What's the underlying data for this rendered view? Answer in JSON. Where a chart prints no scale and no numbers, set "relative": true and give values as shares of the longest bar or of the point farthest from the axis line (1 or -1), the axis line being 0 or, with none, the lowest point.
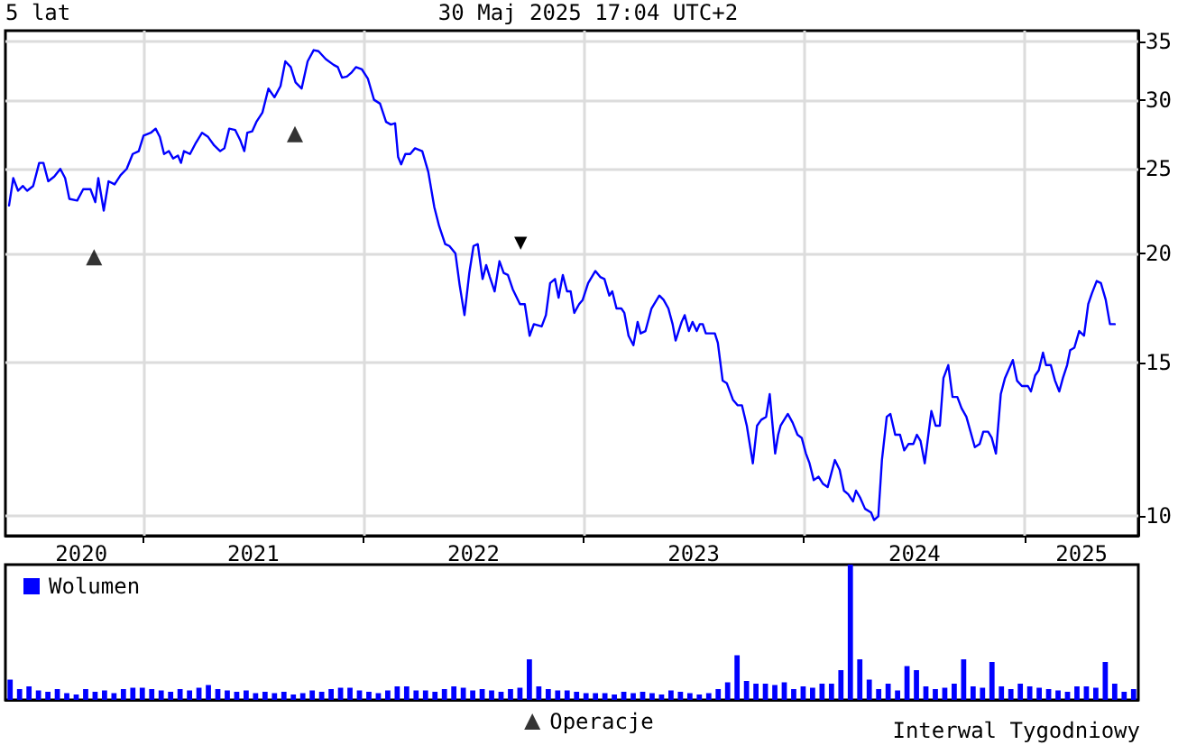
{
  "chart_data": [
    {
      "type": "line",
      "title": "5 lat",
      "subtitle": "30 Maj 2025 17:04 UTC+2",
      "xlim": [
        "2020-05-17",
        "2025-07-08"
      ],
      "xticks": [
        {
          "value": "2020-09-20",
          "label": "2020"
        },
        {
          "value": "2021-01-01",
          "label": null
        },
        {
          "value": "2021-07-02",
          "label": "2021"
        },
        {
          "value": "2022-01-01",
          "label": null
        },
        {
          "value": "2022-07-02",
          "label": "2022"
        },
        {
          "value": "2023-01-01",
          "label": null
        },
        {
          "value": "2023-07-02",
          "label": "2023"
        },
        {
          "value": "2024-01-01",
          "label": null
        },
        {
          "value": "2024-07-02",
          "label": "2024"
        },
        {
          "value": "2025-01-01",
          "label": null
        },
        {
          "value": "2025-04-05",
          "label": "2025"
        }
      ],
      "ylim": [
        9.5,
        36
      ],
      "yticks": [
        10,
        15,
        20,
        25,
        30,
        35
      ],
      "log": "y",
      "grid": true,
      "legend": "bottom",
      "annotations": [
        "▼",
        "Interwal Tygodniowy"
      ],
      "series": [
        {
          "color": "#0000ff",
          "marker": "none",
          "x": [
            "2020-05-23",
            "2020-05-30",
            "2020-06-07",
            "2020-06-15",
            "2020-06-22",
            "2020-07-02",
            "2020-07-12",
            "2020-07-19",
            "2020-07-27",
            "2020-08-06",
            "2020-08-16",
            "2020-08-24",
            "2020-08-31",
            "2020-09-13",
            "2020-09-23",
            "2020-10-05",
            "2020-10-13",
            "2020-10-18",
            "2020-10-27",
            "2020-11-04",
            "2020-11-14",
            "2020-11-24",
            "2020-12-04",
            "2020-12-14",
            "2020-12-24",
            "2021-01-01",
            "2021-01-13",
            "2021-01-21",
            "2021-01-28",
            "2021-02-04",
            "2021-02-12",
            "2021-02-19",
            "2021-02-27",
            "2021-03-04",
            "2021-03-09",
            "2021-03-19",
            "2021-03-29",
            "2021-04-08",
            "2021-04-18",
            "2021-04-28",
            "2021-05-08",
            "2021-05-15",
            "2021-05-23",
            "2021-06-02",
            "2021-06-10",
            "2021-06-17",
            "2021-06-22",
            "2021-06-30",
            "2021-07-07",
            "2021-07-17",
            "2021-07-27",
            "2021-08-06",
            "2021-08-16",
            "2021-08-24",
            "2021-09-02",
            "2021-09-10",
            "2021-09-20",
            "2021-09-30",
            "2021-10-10",
            "2021-10-18",
            "2021-10-30",
            "2021-11-12",
            "2021-11-19",
            "2021-11-26",
            "2021-12-04",
            "2021-12-11",
            "2021-12-19",
            "2021-12-29",
            "2022-01-08",
            "2022-01-18",
            "2022-01-28",
            "2022-02-07",
            "2022-02-15",
            "2022-02-22",
            "2022-02-27",
            "2022-03-04",
            "2022-03-11",
            "2022-03-19",
            "2022-03-27",
            "2022-04-08",
            "2022-04-18",
            "2022-04-28",
            "2022-05-06",
            "2022-05-16",
            "2022-05-23",
            "2022-06-02",
            "2022-06-09",
            "2022-06-17",
            "2022-06-25",
            "2022-07-02",
            "2022-07-09",
            "2022-07-17",
            "2022-07-23",
            "2022-07-29",
            "2022-08-06",
            "2022-08-14",
            "2022-08-21",
            "2022-08-28",
            "2022-09-05",
            "2022-09-17",
            "2022-09-25",
            "2022-10-03",
            "2022-10-10",
            "2022-10-23",
            "2022-10-30",
            "2022-11-06",
            "2022-11-14",
            "2022-11-20",
            "2022-11-27",
            "2022-12-04",
            "2022-12-10",
            "2022-12-16",
            "2022-12-24",
            "2022-12-30",
            "2023-01-08",
            "2023-01-20",
            "2023-01-28",
            "2023-02-04",
            "2023-02-12",
            "2023-02-17",
            "2023-02-24",
            "2023-03-04",
            "2023-03-09",
            "2023-03-16",
            "2023-03-24",
            "2023-03-31",
            "2023-04-05",
            "2023-04-13",
            "2023-04-23",
            "2023-05-06",
            "2023-05-13",
            "2023-05-21",
            "2023-05-28",
            "2023-06-02",
            "2023-06-12",
            "2023-06-17",
            "2023-06-24",
            "2023-06-30",
            "2023-07-07",
            "2023-07-12",
            "2023-07-17",
            "2023-07-22",
            "2023-08-06",
            "2023-08-11",
            "2023-08-19",
            "2023-08-26",
            "2023-09-05",
            "2023-09-13",
            "2023-09-20",
            "2023-09-28",
            "2023-10-08",
            "2023-10-15",
            "2023-10-22",
            "2023-10-30",
            "2023-11-05",
            "2023-11-14",
            "2023-11-19",
            "2023-11-23",
            "2023-12-05",
            "2023-12-13",
            "2023-12-21",
            "2023-12-28",
            "2024-01-04",
            "2024-01-10",
            "2024-01-17",
            "2024-01-25",
            "2024-02-01",
            "2024-02-09",
            "2024-02-21",
            "2024-02-29",
            "2024-03-07",
            "2024-03-14",
            "2024-03-22",
            "2024-03-27",
            "2024-04-03",
            "2024-04-11",
            "2024-04-21",
            "2024-04-26",
            "2024-05-03",
            "2024-05-09",
            "2024-05-17",
            "2024-05-23",
            "2024-05-31",
            "2024-06-08",
            "2024-06-15",
            "2024-06-22",
            "2024-06-30",
            "2024-07-06",
            "2024-07-12",
            "2024-07-19",
            "2024-07-30",
            "2024-08-06",
            "2024-08-13",
            "2024-08-19",
            "2024-08-27",
            "2024-09-03",
            "2024-09-11",
            "2024-09-18",
            "2024-09-26",
            "2024-10-10",
            "2024-10-18",
            "2024-10-24",
            "2024-11-01",
            "2024-11-07",
            "2024-11-14",
            "2024-11-22",
            "2024-11-29",
            "2024-12-12",
            "2024-12-19",
            "2024-12-27",
            "2025-01-06",
            "2025-01-11",
            "2025-01-18",
            "2025-01-24",
            "2025-01-31",
            "2025-02-05",
            "2025-02-13",
            "2025-02-20",
            "2025-02-27",
            "2025-03-05",
            "2025-03-12",
            "2025-03-17",
            "2025-03-24",
            "2025-04-01",
            "2025-04-09",
            "2025-04-16",
            "2025-04-22",
            "2025-04-30",
            "2025-05-07",
            "2025-05-15",
            "2025-05-22",
            "2025-05-30"
          ],
          "values": [
            22.7,
            24.4,
            23.6,
            23.9,
            23.6,
            23.9,
            25.4,
            25.4,
            24.2,
            24.5,
            25.0,
            24.4,
            23.1,
            23.0,
            23.7,
            23.7,
            22.9,
            24.4,
            22.4,
            24.2,
            24.0,
            24.6,
            25.0,
            26.0,
            26.2,
            27.3,
            27.5,
            27.8,
            27.2,
            26.0,
            26.2,
            25.7,
            25.9,
            25.4,
            26.2,
            26.0,
            26.8,
            27.5,
            27.2,
            26.6,
            26.2,
            26.4,
            27.8,
            27.7,
            27.0,
            26.2,
            27.5,
            27.6,
            28.3,
            29.0,
            30.9,
            30.2,
            31.1,
            33.2,
            32.7,
            31.4,
            30.9,
            33.2,
            34.2,
            34.1,
            33.4,
            32.9,
            32.7,
            31.8,
            31.9,
            32.2,
            32.7,
            32.5,
            31.7,
            30.0,
            29.7,
            28.3,
            28.1,
            28.2,
            25.8,
            25.3,
            26.0,
            26.0,
            26.4,
            26.2,
            24.8,
            22.6,
            21.5,
            20.5,
            20.4,
            20.0,
            18.4,
            17.0,
            19.0,
            20.4,
            20.5,
            18.7,
            19.4,
            18.8,
            18.1,
            19.6,
            19.0,
            18.9,
            18.2,
            17.5,
            17.5,
            16.1,
            16.6,
            16.5,
            17.0,
            18.5,
            18.7,
            17.8,
            18.9,
            18.1,
            18.1,
            17.1,
            17.5,
            17.7,
            18.5,
            19.1,
            18.8,
            18.7,
            17.9,
            18.1,
            17.3,
            17.3,
            17.1,
            16.1,
            15.7,
            16.7,
            16.2,
            16.3,
            17.3,
            17.9,
            17.7,
            17.3,
            16.6,
            15.9,
            16.7,
            17.0,
            16.3,
            16.7,
            16.3,
            16.6,
            16.6,
            16.2,
            16.2,
            15.8,
            14.3,
            14.2,
            13.6,
            13.4,
            13.4,
            12.7,
            11.5,
            12.7,
            12.9,
            13.0,
            13.8,
            11.8,
            12.4,
            12.7,
            13.1,
            12.8,
            12.4,
            12.3,
            11.8,
            11.5,
            11.0,
            11.1,
            10.9,
            10.8,
            11.6,
            11.3,
            10.7,
            10.6,
            10.4,
            10.7,
            10.5,
            10.2,
            10.1,
            9.9,
            10.0,
            11.6,
            13.0,
            13.1,
            12.4,
            12.4,
            11.9,
            12.1,
            12.1,
            12.4,
            12.2,
            11.5,
            13.2,
            12.7,
            12.7,
            14.4,
            14.9,
            13.7,
            13.7,
            13.3,
            13.0,
            12.0,
            12.1,
            12.5,
            12.5,
            12.3,
            11.8,
            13.8,
            14.4,
            15.1,
            14.3,
            14.1,
            14.1,
            13.9,
            14.5,
            14.7,
            15.4,
            14.9,
            14.9,
            14.3,
            13.9,
            14.4,
            14.9,
            15.5,
            15.6,
            16.3,
            16.1,
            17.5,
            18.0,
            18.6,
            18.5,
            17.7,
            16.6,
            16.6
          ]
        },
        {
          "type": "scatter",
          "name": "Operacje",
          "color": "#000000",
          "marker": "triangle",
          "x": [
            "2020-10-11",
            "2021-09-09"
          ],
          "values": [
            19.8,
            27.4
          ]
        }
      ]
    },
    {
      "type": "bar",
      "relative": true,
      "legend": "top left",
      "categories": [
        null,
        null,
        null,
        null,
        null,
        null,
        null,
        null,
        null,
        null,
        null,
        null,
        null,
        null,
        null,
        null,
        null,
        null,
        null,
        null,
        null,
        null,
        null,
        null,
        null,
        null,
        null,
        null,
        null,
        null,
        null,
        null,
        null,
        null,
        null,
        null,
        null,
        null,
        null,
        null,
        null,
        null,
        null,
        null,
        null,
        null,
        null,
        null,
        null,
        null,
        null,
        null,
        null,
        null,
        null,
        null,
        null,
        null,
        null,
        null,
        null,
        null,
        null,
        null,
        null,
        null,
        null,
        null,
        null,
        null,
        null,
        null,
        null,
        null,
        null,
        null,
        null,
        null,
        null,
        null,
        null,
        null,
        null,
        null,
        null,
        null,
        null,
        null,
        null,
        null,
        null,
        null,
        null,
        null,
        null,
        null,
        null,
        null,
        null,
        null,
        null,
        null,
        null,
        null,
        null,
        null,
        null,
        null,
        null,
        null,
        null,
        null,
        null,
        null,
        null,
        null,
        null,
        null,
        null,
        null
      ],
      "series": [
        {
          "name": "Wolumen",
          "color": "#0000ff",
          "values": [
            0.15,
            0.08,
            0.1,
            0.07,
            0.06,
            0.08,
            0.05,
            0.04,
            0.08,
            0.06,
            0.07,
            0.05,
            0.08,
            0.09,
            0.09,
            0.08,
            0.07,
            0.06,
            0.08,
            0.07,
            0.09,
            0.11,
            0.08,
            0.07,
            0.06,
            0.07,
            0.05,
            0.06,
            0.05,
            0.06,
            0.04,
            0.05,
            0.07,
            0.06,
            0.08,
            0.09,
            0.09,
            0.07,
            0.06,
            0.05,
            0.07,
            0.1,
            0.1,
            0.07,
            0.07,
            0.06,
            0.08,
            0.1,
            0.09,
            0.07,
            0.08,
            0.07,
            0.06,
            0.08,
            0.09,
            0.3,
            0.1,
            0.08,
            0.07,
            0.07,
            0.06,
            0.05,
            0.05,
            0.05,
            0.04,
            0.06,
            0.05,
            0.06,
            0.05,
            0.04,
            0.07,
            0.06,
            0.05,
            0.04,
            0.05,
            0.08,
            0.13,
            0.33,
            0.14,
            0.12,
            0.12,
            0.11,
            0.13,
            0.08,
            0.1,
            0.09,
            0.12,
            0.12,
            0.22,
            1.0,
            0.3,
            0.15,
            0.08,
            0.12,
            0.07,
            0.25,
            0.22,
            0.1,
            0.08,
            0.09,
            0.12,
            0.3,
            0.1,
            0.09,
            0.28,
            0.1,
            0.08,
            0.12,
            0.1,
            0.09,
            0.08,
            0.07,
            0.06,
            0.1,
            0.1,
            0.09,
            0.28,
            0.12,
            0.06,
            0.08
          ]
        }
      ]
    }
  ]
}
